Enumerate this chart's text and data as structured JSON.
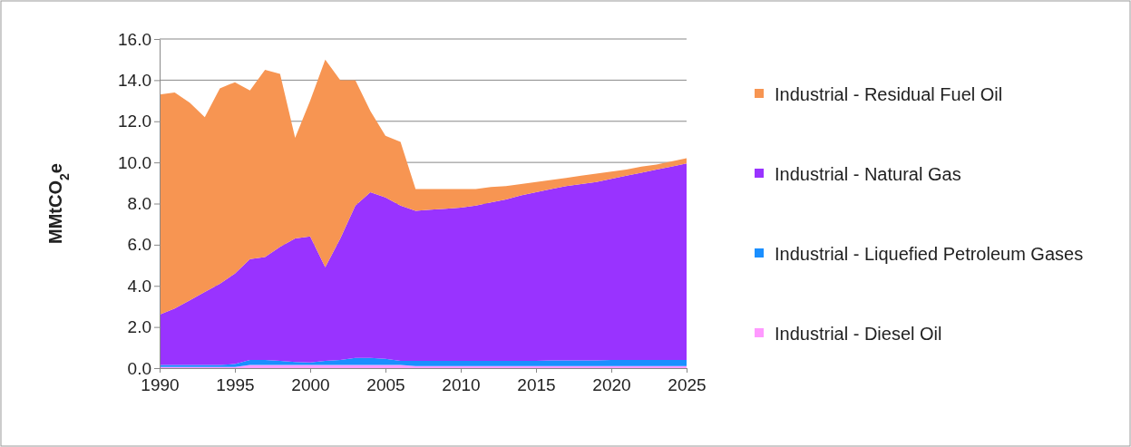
{
  "chart_data": {
    "type": "area",
    "stacked": true,
    "ylabel": "MMtCO$_{2}$e",
    "x": [
      1990,
      1991,
      1992,
      1993,
      1994,
      1995,
      1996,
      1997,
      1998,
      1999,
      2000,
      2001,
      2002,
      2003,
      2004,
      2005,
      2006,
      2007,
      2008,
      2009,
      2010,
      2011,
      2012,
      2013,
      2014,
      2015,
      2016,
      2017,
      2018,
      2019,
      2020,
      2021,
      2022,
      2023,
      2024,
      2025
    ],
    "xlim": [
      1990,
      2025
    ],
    "xticks": [
      1990,
      1995,
      2000,
      2005,
      2010,
      2015,
      2020,
      2025
    ],
    "ylim": [
      0,
      16
    ],
    "yticks": [
      {
        "value": 0,
        "label": "0.0"
      },
      {
        "value": 2,
        "label": "2.0"
      },
      {
        "value": 4,
        "label": "4.0"
      },
      {
        "value": 6,
        "label": "6.0"
      },
      {
        "value": 8,
        "label": "8.0"
      },
      {
        "value": 10,
        "label": "10.0"
      },
      {
        "value": 12,
        "label": "12.0"
      },
      {
        "value": 14,
        "label": "14.0"
      },
      {
        "value": 16,
        "label": "16.0"
      }
    ],
    "grid": "y",
    "legend": "right",
    "series": [
      {
        "name": "Industrial - Diesel Oil",
        "color": "#ff99ff",
        "values": [
          0.05,
          0.05,
          0.05,
          0.05,
          0.05,
          0.05,
          0.15,
          0.15,
          0.15,
          0.15,
          0.15,
          0.15,
          0.15,
          0.15,
          0.15,
          0.15,
          0.15,
          0.1,
          0.1,
          0.1,
          0.1,
          0.1,
          0.1,
          0.1,
          0.1,
          0.1,
          0.1,
          0.1,
          0.1,
          0.1,
          0.1,
          0.1,
          0.1,
          0.1,
          0.1,
          0.1
        ]
      },
      {
        "name": "Industrial - Liquefied Petroleum Gases",
        "color": "#1a8fff",
        "values": [
          0.1,
          0.1,
          0.1,
          0.1,
          0.1,
          0.15,
          0.25,
          0.25,
          0.2,
          0.15,
          0.12,
          0.2,
          0.25,
          0.35,
          0.35,
          0.3,
          0.2,
          0.25,
          0.25,
          0.25,
          0.25,
          0.25,
          0.25,
          0.25,
          0.25,
          0.25,
          0.27,
          0.27,
          0.27,
          0.27,
          0.3,
          0.3,
          0.3,
          0.3,
          0.3,
          0.3
        ]
      },
      {
        "name": "Industrial - Natural Gas",
        "color": "#9933ff",
        "values": [
          2.45,
          2.75,
          3.15,
          3.55,
          3.95,
          4.4,
          4.9,
          5.0,
          5.55,
          6.0,
          6.13,
          4.55,
          5.9,
          7.4,
          8.05,
          7.85,
          7.55,
          7.3,
          7.35,
          7.4,
          7.45,
          7.55,
          7.7,
          7.85,
          8.05,
          8.2,
          8.33,
          8.48,
          8.58,
          8.68,
          8.8,
          8.95,
          9.1,
          9.25,
          9.4,
          9.55
        ]
      },
      {
        "name": "Industrial - Residual Fuel Oil",
        "color": "#f79552",
        "values": [
          10.7,
          10.5,
          9.6,
          8.5,
          9.5,
          9.3,
          8.2,
          9.1,
          8.4,
          4.9,
          6.6,
          10.1,
          7.7,
          6.1,
          3.95,
          3.0,
          3.1,
          1.05,
          1.0,
          0.95,
          0.9,
          0.8,
          0.75,
          0.65,
          0.55,
          0.5,
          0.45,
          0.4,
          0.4,
          0.4,
          0.35,
          0.3,
          0.3,
          0.25,
          0.25,
          0.25
        ]
      }
    ]
  }
}
